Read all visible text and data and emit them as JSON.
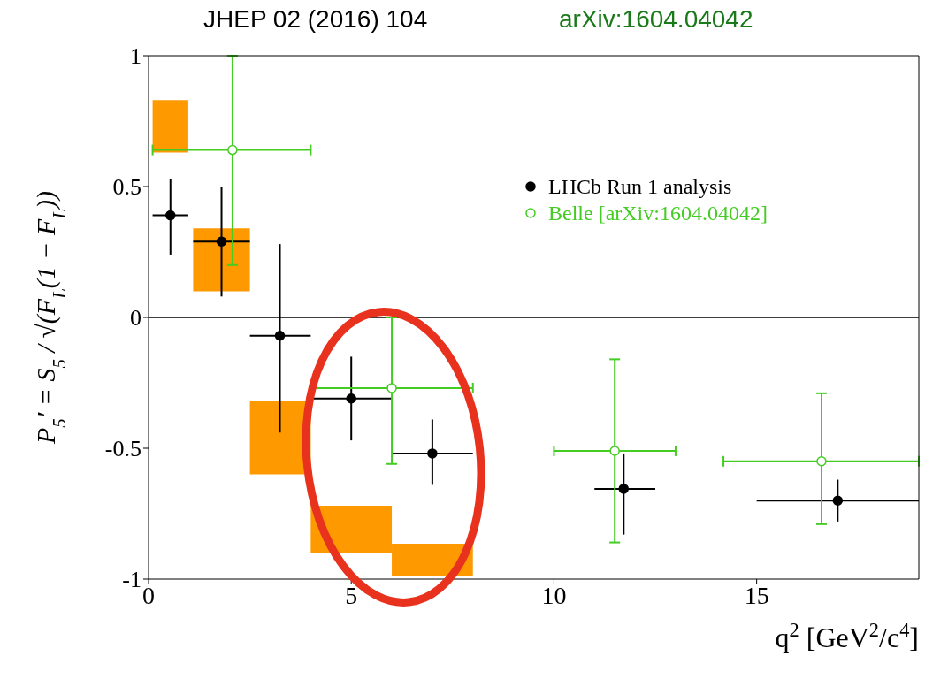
{
  "chart_data": {
    "type": "scatter",
    "annotations": [
      "JHEP 02 (2016) 104",
      "arXiv:1604.04042"
    ],
    "xlabel": "q$^{2}$ [GeV$^{2}$/c$^{4}$]",
    "ylabel": "P$_{5}$′ = S$_{5}$ / √(F$_{L}$(1 − F$_{L}$))",
    "xlim": [
      0,
      19
    ],
    "xticks": [
      0,
      5,
      10,
      15
    ],
    "ylim": [
      -1,
      1
    ],
    "yticks": [
      -1,
      -0.5,
      0,
      0.5,
      1
    ],
    "legend": "top right",
    "marker": "circle",
    "ref_lines": [
      {
        "axis": "y",
        "value": 0,
        "color": "#000000"
      }
    ],
    "series": [
      {
        "type": "histogram",
        "color": "#ff9900",
        "bins": [
          0.1,
          0.98,
          1.1,
          2.5,
          4,
          6,
          8
        ],
        "base": [
          0.63,
          null,
          0.1,
          -0.6,
          -0.9,
          -0.99
        ],
        "values": [
          0.2,
          null,
          0.24,
          0.28,
          0.18,
          0.125
        ]
      },
      {
        "name": "LHCb Run 1 analysis",
        "color": "#000000",
        "x": [
          0.54,
          1.8,
          3.24,
          5,
          7,
          11.72,
          17
        ],
        "values": [
          0.39,
          0.29,
          -0.07,
          -0.31,
          -0.52,
          -0.655,
          -0.7
        ],
        "errors": [
          [
            0.24,
            0.53
          ],
          [
            0.08,
            0.5
          ],
          [
            -0.44,
            0.28
          ],
          [
            -0.47,
            -0.15
          ],
          [
            -0.64,
            -0.39
          ],
          [
            -0.83,
            -0.52
          ],
          [
            -0.78,
            -0.62
          ]
        ],
        "xerrors": [
          [
            0.1,
            0.98
          ],
          [
            1.1,
            2.5
          ],
          [
            2.5,
            4
          ],
          [
            4,
            6
          ],
          [
            6,
            8
          ],
          [
            11,
            12.5
          ],
          [
            15,
            19
          ]
        ]
      },
      {
        "name": "Belle [arXiv:1604.04042]",
        "color": "#44cc22",
        "x": [
          2.07,
          6,
          11.5,
          16.6
        ],
        "values": [
          0.64,
          -0.27,
          -0.51,
          -0.55
        ],
        "errors": [
          [
            0.2,
            1
          ],
          [
            -0.56,
            0
          ],
          [
            -0.86,
            -0.16
          ],
          [
            -0.79,
            -0.29
          ]
        ],
        "xerrors": [
          [
            0.1,
            4
          ],
          [
            4,
            8
          ],
          [
            10,
            13
          ],
          [
            14.18,
            19
          ]
        ]
      }
    ]
  }
}
